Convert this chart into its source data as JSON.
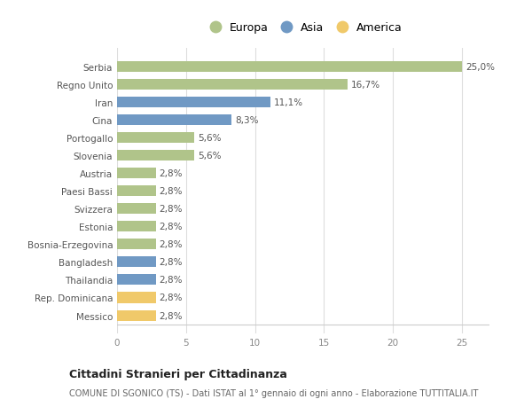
{
  "categories": [
    "Messico",
    "Rep. Dominicana",
    "Thailandia",
    "Bangladesh",
    "Bosnia-Erzegovina",
    "Estonia",
    "Svizzera",
    "Paesi Bassi",
    "Austria",
    "Slovenia",
    "Portogallo",
    "Cina",
    "Iran",
    "Regno Unito",
    "Serbia"
  ],
  "values": [
    2.8,
    2.8,
    2.8,
    2.8,
    2.8,
    2.8,
    2.8,
    2.8,
    2.8,
    5.6,
    5.6,
    8.3,
    11.1,
    16.7,
    25.0
  ],
  "colors": [
    "#f0c96a",
    "#f0c96a",
    "#7099c4",
    "#7099c4",
    "#b0c48a",
    "#b0c48a",
    "#b0c48a",
    "#b0c48a",
    "#b0c48a",
    "#b0c48a",
    "#b0c48a",
    "#7099c4",
    "#7099c4",
    "#b0c48a",
    "#b0c48a"
  ],
  "labels": [
    "2,8%",
    "2,8%",
    "2,8%",
    "2,8%",
    "2,8%",
    "2,8%",
    "2,8%",
    "2,8%",
    "2,8%",
    "5,6%",
    "5,6%",
    "8,3%",
    "11,1%",
    "16,7%",
    "25,0%"
  ],
  "legend": [
    {
      "label": "Europa",
      "color": "#b0c48a"
    },
    {
      "label": "Asia",
      "color": "#7099c4"
    },
    {
      "label": "America",
      "color": "#f0c96a"
    }
  ],
  "title": "Cittadini Stranieri per Cittadinanza",
  "subtitle": "COMUNE DI SGONICO (TS) - Dati ISTAT al 1° gennaio di ogni anno - Elaborazione TUTTITALIA.IT",
  "xlim": [
    0,
    27
  ],
  "xticks": [
    0,
    5,
    10,
    15,
    20,
    25
  ],
  "background_color": "#ffffff",
  "grid_color": "#dddddd",
  "bar_height": 0.6
}
